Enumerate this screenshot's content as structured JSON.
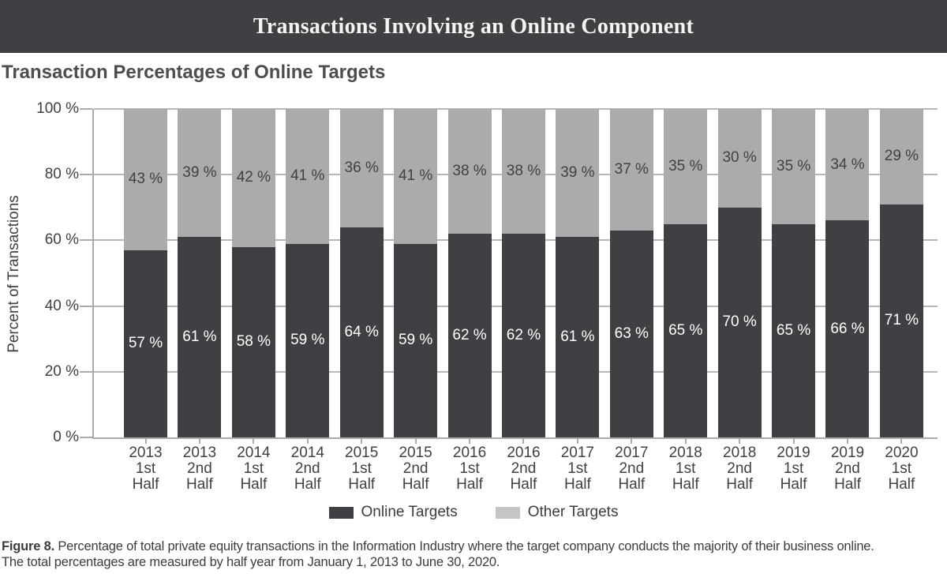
{
  "header": {
    "title": "Transactions Involving an Online Component"
  },
  "subtitle": "Transaction Percentages of Online Targets",
  "colors": {
    "banner_bg": "#3e4043",
    "online_bar": "#3e4043",
    "other_bar": "#a9abad",
    "gridline": "#b5b7b9",
    "axis": "#a9abad",
    "text": "#3f4144"
  },
  "chart_data": {
    "type": "bar",
    "stacked": true,
    "title": "Transaction Percentages of Online Targets",
    "ylabel": "Percent of Transactions",
    "ylim": [
      0,
      100
    ],
    "yticks": [
      0,
      20,
      40,
      60,
      80,
      100
    ],
    "ytick_suffix": " %",
    "value_suffix": " %",
    "grid": "horizontal",
    "legend_position": "bottom",
    "categories": [
      [
        "2013",
        "1st",
        "Half"
      ],
      [
        "2013",
        "2nd",
        "Half"
      ],
      [
        "2014",
        "1st",
        "Half"
      ],
      [
        "2014",
        "2nd",
        "Half"
      ],
      [
        "2015",
        "1st",
        "Half"
      ],
      [
        "2015",
        "2nd",
        "Half"
      ],
      [
        "2016",
        "1st",
        "Half"
      ],
      [
        "2016",
        "2nd",
        "Half"
      ],
      [
        "2017",
        "1st",
        "Half"
      ],
      [
        "2017",
        "2nd",
        "Half"
      ],
      [
        "2018",
        "1st",
        "Half"
      ],
      [
        "2018",
        "2nd",
        "Half"
      ],
      [
        "2019",
        "1st",
        "Half"
      ],
      [
        "2019",
        "2nd",
        "Half"
      ],
      [
        "2020",
        "1st",
        "Half"
      ]
    ],
    "series": [
      {
        "name": "Online Targets",
        "color": "#3e4043",
        "text_color": "#ffffff",
        "values": [
          57,
          61,
          58,
          59,
          64,
          59,
          62,
          62,
          61,
          63,
          65,
          70,
          65,
          66,
          71
        ]
      },
      {
        "name": "Other Targets",
        "color": "#a9abad",
        "text_color": "#3f4144",
        "values": [
          43,
          39,
          42,
          41,
          36,
          41,
          38,
          38,
          39,
          37,
          35,
          30,
          35,
          34,
          29
        ]
      }
    ],
    "legend": [
      {
        "label": "Online Targets",
        "swatch": "#3e4043"
      },
      {
        "label": "Other Targets",
        "swatch": "#c3c5c7"
      }
    ]
  },
  "caption": {
    "label": "Figure 8.",
    "sentence1": "Percentage of total private equity transactions in the Information Industry where the target company conducts the majority of their business online.",
    "sentence2": "The total percentages are measured by half year from January 1, 2013 to June 30, 2020."
  }
}
